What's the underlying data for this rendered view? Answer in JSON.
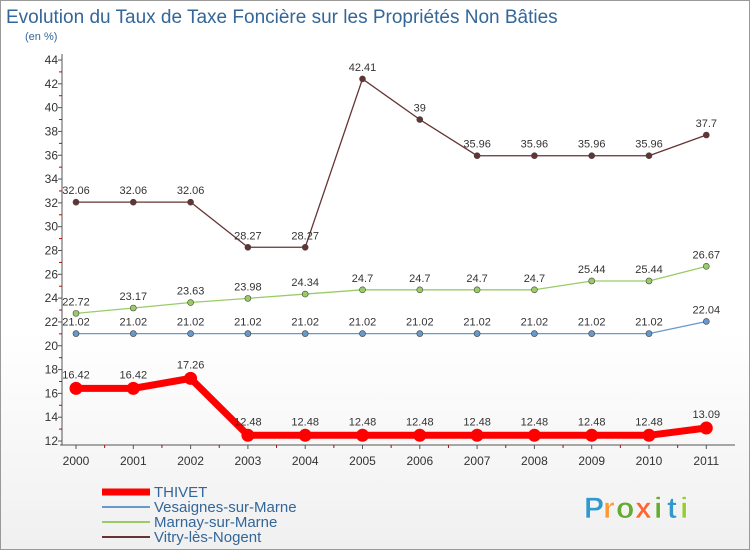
{
  "title": "Evolution du Taux de Taxe Foncière sur les Propriétés Non Bâties",
  "subtitle": "(en %)",
  "logo": {
    "text": "Proxiti",
    "letters": [
      "P",
      "r",
      "o",
      "x",
      "i",
      "t",
      "i"
    ]
  },
  "chart_data": {
    "type": "line",
    "title": "Evolution du Taux de Taxe Foncière sur les Propriétés Non Bâties",
    "ylabel": "(en %)",
    "xlabel": "",
    "x": [
      "2000",
      "2001",
      "2002",
      "2003",
      "2004",
      "2005",
      "2006",
      "2007",
      "2008",
      "2009",
      "2010",
      "2011"
    ],
    "ylim": [
      12,
      44
    ],
    "yticks": [
      12,
      14,
      16,
      18,
      20,
      22,
      24,
      26,
      28,
      30,
      32,
      34,
      36,
      38,
      40,
      42,
      44
    ],
    "grid": false,
    "legend": "bottom-left",
    "series": [
      {
        "name": "THIVET",
        "color": "#ff0000",
        "values": [
          16.42,
          16.42,
          17.26,
          12.48,
          12.48,
          12.48,
          12.48,
          12.48,
          12.48,
          12.48,
          12.48,
          13.09
        ],
        "labels": [
          "16.42",
          "16.42",
          "17.26",
          "12.48",
          "12.48",
          "12.48",
          "12.48",
          "12.48",
          "12.48",
          "12.48",
          "12.48",
          "13.09"
        ]
      },
      {
        "name": "Vesaignes-sur-Marne",
        "color": "#6699cc",
        "values": [
          21.02,
          21.02,
          21.02,
          21.02,
          21.02,
          21.02,
          21.02,
          21.02,
          21.02,
          21.02,
          21.02,
          22.04
        ],
        "labels": [
          "21.02",
          "21.02",
          "21.02",
          "21.02",
          "21.02",
          "21.02",
          "21.02",
          "21.02",
          "21.02",
          "21.02",
          "21.02",
          "22.04"
        ]
      },
      {
        "name": "Marnay-sur-Marne",
        "color": "#99cc66",
        "values": [
          22.72,
          23.17,
          23.63,
          23.98,
          24.34,
          24.7,
          24.7,
          24.7,
          24.7,
          25.44,
          25.44,
          26.67
        ],
        "labels": [
          "22.72",
          "23.17",
          "23.63",
          "23.98",
          "24.34",
          "24.7",
          "24.7",
          "24.7",
          "24.7",
          "25.44",
          "25.44",
          "26.67"
        ]
      },
      {
        "name": "Vitry-lès-Nogent",
        "color": "#663333",
        "values": [
          32.06,
          32.06,
          32.06,
          28.27,
          28.27,
          42.41,
          39,
          35.96,
          35.96,
          35.96,
          35.96,
          37.7
        ],
        "labels": [
          "32.06",
          "32.06",
          "32.06",
          "28.27",
          "28.27",
          "42.41",
          "39",
          "35.96",
          "35.96",
          "35.96",
          "35.96",
          "37.7"
        ]
      }
    ]
  }
}
